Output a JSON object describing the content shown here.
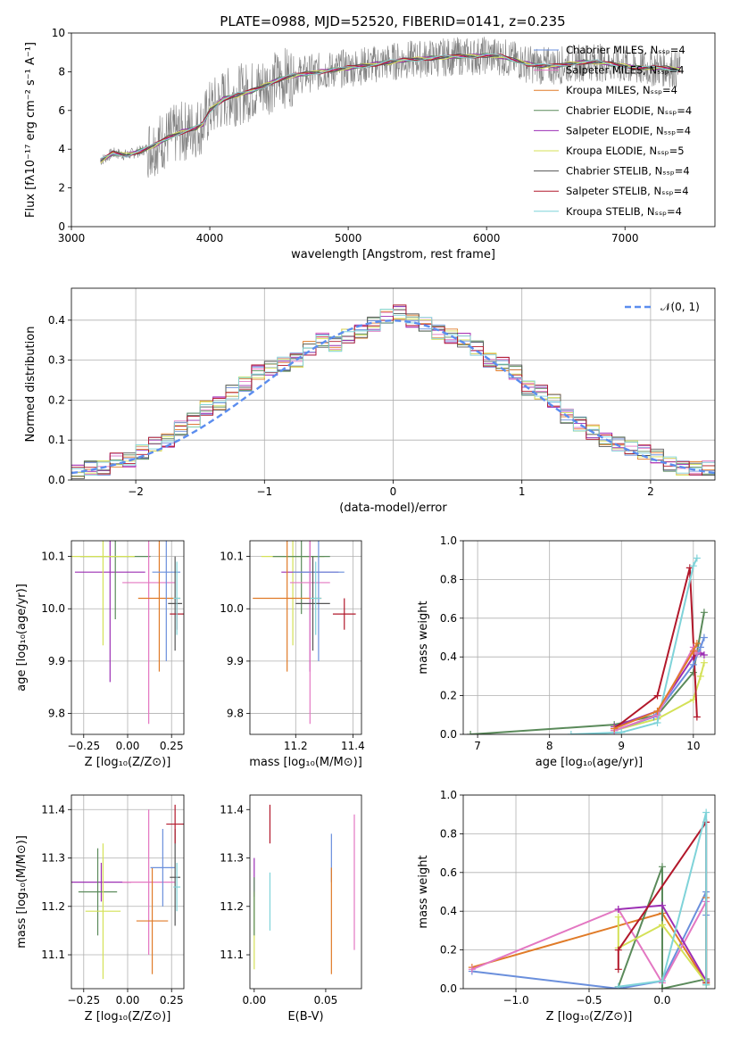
{
  "chart_data": [
    {
      "type": "line",
      "title": "PLATE=0988, MJD=52520, FIBERID=0141, z=0.235",
      "xlabel": "wavelength [Angstrom, rest frame]",
      "ylabel": "Flux [fλ10⁻¹⁷ erg cm⁻² s⁻¹ A⁻¹]",
      "xlim": [
        3000,
        7650
      ],
      "ylim": [
        0,
        10
      ],
      "xticks": [
        "3000",
        "4000",
        "5000",
        "6000",
        "7000"
      ],
      "yticks": [
        "0",
        "2",
        "4",
        "6",
        "8",
        "10"
      ],
      "grid": false,
      "legend_position": "right",
      "legend": [
        {
          "name": "Chabrier MILES, Nₛₛₚ=4",
          "color": "#6a8fdc"
        },
        {
          "name": "Salpeter MILES, Nₛₛₚ=4",
          "color": "#e377c2"
        },
        {
          "name": "Kroupa MILES, Nₛₛₚ=4",
          "color": "#e07b28"
        },
        {
          "name": "Chabrier ELODIE, Nₛₛₚ=4",
          "color": "#5a8a5a"
        },
        {
          "name": "Salpeter ELODIE, Nₛₛₚ=4",
          "color": "#9c2fb4"
        },
        {
          "name": "Kroupa ELODIE, Nₛₛₚ=5",
          "color": "#d4e157"
        },
        {
          "name": "Chabrier STELIB, Nₛₛₚ=4",
          "color": "#555555"
        },
        {
          "name": "Salpeter STELIB, Nₛₛₚ=4",
          "color": "#b2182b"
        },
        {
          "name": "Kroupa STELIB, Nₛₛₚ=4",
          "color": "#7fd3d9"
        }
      ],
      "data_color": "#808080",
      "model_x": [
        3210,
        3300,
        3400,
        3500,
        3600,
        3700,
        3800,
        3900,
        3950,
        4000,
        4100,
        4200,
        4300,
        4400,
        4500,
        4600,
        4700,
        4800,
        4900,
        5000,
        5100,
        5200,
        5300,
        5400,
        5500,
        5600,
        5700,
        5800,
        5900,
        6000,
        6100,
        6200,
        6300,
        6400,
        6500,
        6600,
        6700,
        6800,
        6900,
        7000,
        7100,
        7200,
        7300,
        7400
      ],
      "model_y": [
        3.4,
        3.8,
        3.7,
        3.9,
        4.2,
        4.6,
        4.9,
        5.1,
        5.3,
        6.0,
        6.6,
        6.8,
        7.0,
        7.3,
        7.6,
        7.8,
        7.9,
        8.0,
        8.1,
        8.2,
        8.3,
        8.4,
        8.5,
        8.6,
        8.65,
        8.7,
        8.75,
        8.8,
        8.8,
        8.85,
        8.8,
        8.6,
        8.4,
        8.3,
        8.3,
        8.4,
        8.5,
        8.5,
        8.4,
        8.3,
        8.2,
        8.2,
        8.2,
        8.1
      ]
    },
    {
      "type": "bar",
      "xlabel": "(data-model)/error",
      "ylabel": "Normed distribution",
      "xlim": [
        -2.5,
        2.5
      ],
      "ylim": [
        0,
        0.48
      ],
      "xticks": [
        "−2",
        "−1",
        "0",
        "1",
        "2"
      ],
      "yticks": [
        "0.0",
        "0.1",
        "0.2",
        "0.3",
        "0.4"
      ],
      "grid": true,
      "legend_position": "top-right",
      "legend": [
        {
          "name": "𝒩(0, 1)",
          "color": "#5b8def"
        }
      ],
      "bin_width": 0.1,
      "histogram_center": [
        0.02,
        0.03,
        0.03,
        0.05,
        0.05,
        0.07,
        0.09,
        0.1,
        0.13,
        0.15,
        0.18,
        0.19,
        0.22,
        0.24,
        0.27,
        0.28,
        0.29,
        0.3,
        0.33,
        0.35,
        0.34,
        0.36,
        0.37,
        0.39,
        0.41,
        0.42,
        0.4,
        0.39,
        0.37,
        0.36,
        0.35,
        0.33,
        0.3,
        0.29,
        0.27,
        0.23,
        0.22,
        0.2,
        0.16,
        0.14,
        0.12,
        0.1,
        0.09,
        0.08,
        0.07,
        0.06,
        0.04,
        0.03,
        0.03,
        0.03
      ]
    },
    {
      "type": "scatter",
      "xlabel": "Z [log₁₀(Z/Z⊙)]",
      "ylabel": "age  [log₁₀(age/yr)]",
      "xlim": [
        -0.32,
        0.32
      ],
      "ylim": [
        9.76,
        10.13
      ],
      "xticks": [
        "−0.25",
        "0.00",
        "0.25"
      ],
      "yticks": [
        "9.8",
        "9.9",
        "10.0",
        "10.1"
      ],
      "grid": true,
      "points": [
        {
          "x": -0.1,
          "y": 10.07,
          "xerr": 0.2,
          "yerr": 0.21,
          "color": "#9c2fb4"
        },
        {
          "x": -0.07,
          "y": 10.1,
          "xerr": 0.2,
          "yerr": 0.12,
          "color": "#5a8a5a"
        },
        {
          "x": -0.14,
          "y": 10.1,
          "xerr": 0.18,
          "yerr": 0.17,
          "color": "#d4e157"
        },
        {
          "x": 0.12,
          "y": 10.05,
          "xerr": 0.15,
          "yerr": 0.27,
          "color": "#e377c2"
        },
        {
          "x": 0.18,
          "y": 10.02,
          "xerr": 0.12,
          "yerr": 0.14,
          "color": "#e07b28"
        },
        {
          "x": 0.22,
          "y": 10.07,
          "xerr": 0.08,
          "yerr": 0.17,
          "color": "#6a8fdc"
        },
        {
          "x": 0.27,
          "y": 10.01,
          "xerr": 0.04,
          "yerr": 0.09,
          "color": "#555555"
        },
        {
          "x": 0.28,
          "y": 9.99,
          "xerr": 0.04,
          "yerr": 0.03,
          "color": "#b2182b"
        },
        {
          "x": 0.28,
          "y": 10.02,
          "xerr": 0.02,
          "yerr": 0.07,
          "color": "#7fd3d9"
        }
      ]
    },
    {
      "type": "scatter",
      "xlabel": "mass [log₁₀(M/M⊙)]",
      "ylabel": "",
      "xlim": [
        11.04,
        11.43
      ],
      "ylim": [
        9.76,
        10.13
      ],
      "xticks": [
        "11.2",
        "11.4"
      ],
      "yticks": [
        "9.8",
        "9.9",
        "10.0",
        "10.1"
      ],
      "grid": true,
      "points": [
        {
          "x": 11.19,
          "y": 10.1,
          "xerr": 0.11,
          "yerr": 0.17,
          "color": "#d4e157"
        },
        {
          "x": 11.22,
          "y": 10.1,
          "xerr": 0.1,
          "yerr": 0.11,
          "color": "#5a8a5a"
        },
        {
          "x": 11.25,
          "y": 10.07,
          "xerr": 0.1,
          "yerr": 0.19,
          "color": "#9c2fb4"
        },
        {
          "x": 11.25,
          "y": 10.05,
          "xerr": 0.07,
          "yerr": 0.27,
          "color": "#e377c2"
        },
        {
          "x": 11.17,
          "y": 10.02,
          "xerr": 0.12,
          "yerr": 0.14,
          "color": "#e07b28"
        },
        {
          "x": 11.28,
          "y": 10.07,
          "xerr": 0.09,
          "yerr": 0.17,
          "color": "#6a8fdc"
        },
        {
          "x": 11.26,
          "y": 10.01,
          "xerr": 0.06,
          "yerr": 0.09,
          "color": "#555555"
        },
        {
          "x": 11.37,
          "y": 9.99,
          "xerr": 0.04,
          "yerr": 0.03,
          "color": "#b2182b"
        },
        {
          "x": 11.27,
          "y": 10.02,
          "xerr": 0.02,
          "yerr": 0.07,
          "color": "#7fd3d9"
        }
      ]
    },
    {
      "type": "line",
      "xlabel": "age  [log₁₀(age/yr)]",
      "ylabel": "mass weight",
      "xlim": [
        6.8,
        10.3
      ],
      "ylim": [
        0,
        1
      ],
      "xticks": [
        "7",
        "8",
        "9",
        "10"
      ],
      "yticks": [
        "0.0",
        "0.2",
        "0.4",
        "0.6",
        "0.8",
        "1.0"
      ],
      "grid": true,
      "series": [
        {
          "color": "#5a8a5a",
          "x": [
            6.9,
            8.9,
            9.5,
            10.0,
            10.15
          ],
          "y": [
            0.0,
            0.05,
            0.1,
            0.32,
            0.63
          ]
        },
        {
          "color": "#9c2fb4",
          "x": [
            8.9,
            9.5,
            10.0,
            10.1,
            10.15
          ],
          "y": [
            0.04,
            0.12,
            0.4,
            0.42,
            0.41
          ]
        },
        {
          "color": "#d4e157",
          "x": [
            8.9,
            9.5,
            10.0,
            10.1,
            10.15
          ],
          "y": [
            0.02,
            0.08,
            0.18,
            0.3,
            0.37
          ]
        },
        {
          "color": "#b2182b",
          "x": [
            8.9,
            9.5,
            9.95,
            10.05
          ],
          "y": [
            0.03,
            0.2,
            0.86,
            0.09
          ]
        },
        {
          "color": "#7fd3d9",
          "x": [
            8.3,
            9.0,
            9.5,
            10.0,
            10.05
          ],
          "y": [
            0.0,
            0.01,
            0.06,
            0.87,
            0.91
          ]
        },
        {
          "color": "#6a8fdc",
          "x": [
            8.9,
            9.45,
            10.0,
            10.1,
            10.15
          ],
          "y": [
            0.02,
            0.09,
            0.36,
            0.45,
            0.5
          ]
        },
        {
          "color": "#e377c2",
          "x": [
            8.9,
            9.5,
            10.0,
            10.05
          ],
          "y": [
            0.02,
            0.1,
            0.45,
            0.42
          ]
        },
        {
          "color": "#e07b28",
          "x": [
            8.9,
            9.5,
            10.0,
            10.05
          ],
          "y": [
            0.03,
            0.12,
            0.43,
            0.47
          ]
        }
      ]
    },
    {
      "type": "scatter",
      "xlabel": "Z [log₁₀(Z/Z⊙)]",
      "ylabel": "mass [log₁₀(M/M⊙)]",
      "xlim": [
        -0.32,
        0.32
      ],
      "ylim": [
        11.03,
        11.43
      ],
      "xticks": [
        "−0.25",
        "0.00",
        "0.25"
      ],
      "yticks": [
        "11.1",
        "11.2",
        "11.3",
        "11.4"
      ],
      "grid": true,
      "points": [
        {
          "x": -0.15,
          "y": 11.25,
          "xerr": 0.17,
          "yerr": 0.04,
          "color": "#9c2fb4"
        },
        {
          "x": -0.17,
          "y": 11.23,
          "xerr": 0.11,
          "yerr": 0.09,
          "color": "#5a8a5a"
        },
        {
          "x": -0.14,
          "y": 11.19,
          "xerr": 0.1,
          "yerr": 0.14,
          "color": "#d4e157"
        },
        {
          "x": 0.12,
          "y": 11.25,
          "xerr": 0.15,
          "yerr": 0.15,
          "color": "#e377c2"
        },
        {
          "x": 0.14,
          "y": 11.17,
          "xerr": 0.09,
          "yerr": 0.11,
          "color": "#e07b28"
        },
        {
          "x": 0.2,
          "y": 11.28,
          "xerr": 0.07,
          "yerr": 0.08,
          "color": "#6a8fdc"
        },
        {
          "x": 0.27,
          "y": 11.26,
          "xerr": 0.03,
          "yerr": 0.1,
          "color": "#555555"
        },
        {
          "x": 0.27,
          "y": 11.37,
          "xerr": 0.05,
          "yerr": 0.04,
          "color": "#b2182b"
        },
        {
          "x": 0.28,
          "y": 11.24,
          "xerr": 0.02,
          "yerr": 0.05,
          "color": "#7fd3d9"
        }
      ]
    },
    {
      "type": "scatter",
      "xlabel": "E(B-V)",
      "ylabel": "",
      "xlim": [
        -0.003,
        0.075
      ],
      "ylim": [
        11.03,
        11.43
      ],
      "xticks": [
        "0.00",
        "0.05"
      ],
      "yticks": [
        "11.1",
        "11.2",
        "11.3",
        "11.4"
      ],
      "grid": false,
      "points": [
        {
          "x": 0.0,
          "y": 11.26,
          "xerr": 0,
          "yerr": 0.04,
          "color": "#9c2fb4"
        },
        {
          "x": 0.0,
          "y": 11.15,
          "xerr": 0,
          "yerr": 0.08,
          "color": "#d4e157"
        },
        {
          "x": 0.0,
          "y": 11.2,
          "xerr": 0,
          "yerr": 0.06,
          "color": "#5a8a5a"
        },
        {
          "x": 0.011,
          "y": 11.37,
          "xerr": 0,
          "yerr": 0.04,
          "color": "#b2182b"
        },
        {
          "x": 0.011,
          "y": 11.21,
          "xerr": 0,
          "yerr": 0.06,
          "color": "#7fd3d9"
        },
        {
          "x": 0.054,
          "y": 11.3,
          "xerr": 0,
          "yerr": 0.05,
          "color": "#6a8fdc"
        },
        {
          "x": 0.054,
          "y": 11.17,
          "xerr": 0,
          "yerr": 0.11,
          "color": "#e07b28"
        },
        {
          "x": 0.07,
          "y": 11.25,
          "xerr": 0,
          "yerr": 0.14,
          "color": "#e377c2"
        }
      ]
    },
    {
      "type": "line",
      "xlabel": "Z [log₁₀(Z/Z⊙)]",
      "ylabel": "mass weight",
      "xlim": [
        -1.36,
        0.36
      ],
      "ylim": [
        0,
        1
      ],
      "xticks": [
        "−1.0",
        "−0.5",
        "0.0"
      ],
      "yticks": [
        "0.0",
        "0.2",
        "0.4",
        "0.6",
        "0.8",
        "1.0"
      ],
      "grid": true,
      "series": [
        {
          "color": "#6a8fdc",
          "x": [
            -1.3,
            -0.3,
            0.0,
            0.3,
            0.3
          ],
          "y": [
            0.09,
            0.0,
            0.04,
            0.5,
            0.38
          ]
        },
        {
          "color": "#e07b28",
          "x": [
            -1.3,
            0.0,
            0.3,
            0.3
          ],
          "y": [
            0.11,
            0.39,
            0.03,
            0.47
          ]
        },
        {
          "color": "#e377c2",
          "x": [
            -1.3,
            -0.3,
            0.0,
            0.3
          ],
          "y": [
            0.1,
            0.41,
            0.03,
            0.45
          ]
        },
        {
          "color": "#5a8a5a",
          "x": [
            -0.3,
            0.0,
            0.0,
            0.3,
            0.3
          ],
          "y": [
            0.01,
            0.63,
            0.0,
            0.05,
            0.02
          ]
        },
        {
          "color": "#9c2fb4",
          "x": [
            -0.3,
            0.0,
            0.3,
            0.3
          ],
          "y": [
            0.41,
            0.43,
            0.04,
            0.04
          ]
        },
        {
          "color": "#d4e157",
          "x": [
            -0.3,
            -0.3,
            0.0,
            0.3,
            0.3
          ],
          "y": [
            0.37,
            0.21,
            0.33,
            0.03,
            0.02
          ]
        },
        {
          "color": "#b2182b",
          "x": [
            -0.3,
            -0.3,
            0.3,
            0.3
          ],
          "y": [
            0.1,
            0.2,
            0.86,
            0.03
          ]
        },
        {
          "color": "#7fd3d9",
          "x": [
            -0.3,
            0.0,
            0.3,
            0.3
          ],
          "y": [
            0.01,
            0.04,
            0.91,
            0.02
          ]
        }
      ]
    }
  ]
}
